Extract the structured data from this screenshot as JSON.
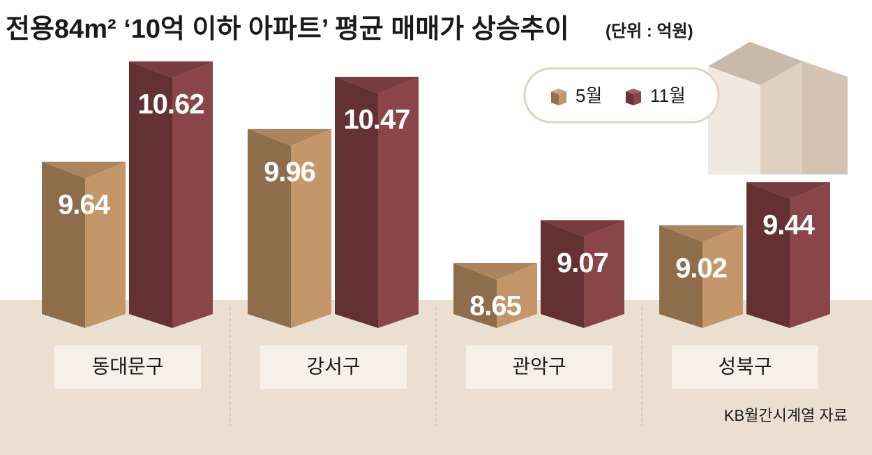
{
  "chart_data": {
    "type": "prism-bar",
    "title": "전용84m² ‘10억 이하 아파트’ 평균 매매가 상승추이",
    "subtitle": "(단위 : 억원)",
    "categories": [
      "동대문구",
      "강서구",
      "관악구",
      "성북구"
    ],
    "series": [
      {
        "name": "5월",
        "color": "#c4976a",
        "values": [
          9.64,
          9.96,
          8.65,
          9.02
        ]
      },
      {
        "name": "11월",
        "color": "#8a4548",
        "values": [
          10.62,
          10.47,
          9.07,
          9.44
        ]
      }
    ],
    "source": "KB월간시계열 자료"
  }
}
